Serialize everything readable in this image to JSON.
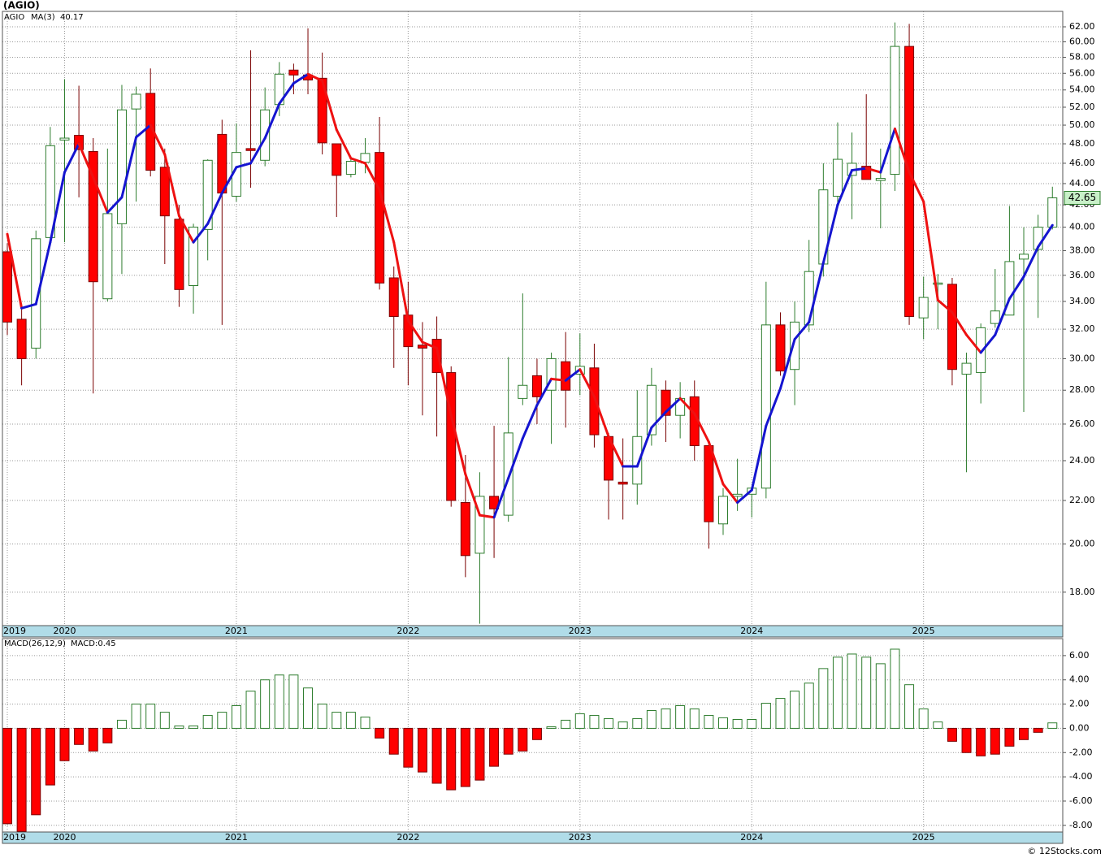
{
  "chart_data": [
    {
      "type": "candlestick",
      "title": "(AGIO)",
      "categories": [
        "2019",
        null,
        null,
        null,
        "2020",
        null,
        null,
        null,
        null,
        null,
        null,
        null,
        null,
        null,
        null,
        null,
        "2021",
        null,
        null,
        null,
        null,
        null,
        null,
        null,
        null,
        null,
        null,
        null,
        "2022",
        null,
        null,
        null,
        null,
        null,
        null,
        null,
        null,
        null,
        null,
        null,
        "2023",
        null,
        null,
        null,
        null,
        null,
        null,
        null,
        null,
        null,
        null,
        null,
        "2024",
        null,
        null,
        null,
        null,
        null,
        null,
        null,
        null,
        null,
        null,
        null,
        "2025",
        null,
        null,
        null,
        null,
        null,
        null,
        null,
        null,
        null
      ],
      "series": [
        {
          "name": "AGIO",
          "color": "#2e8b2e",
          "up_color": "#2e7d2e",
          "down_color": "#ff0000",
          "down_edge_color": "#7a0000",
          "open": [
            37.9,
            32.7,
            30.7,
            39.1,
            48.4,
            48.9,
            47.2,
            34.2,
            40.3,
            51.8,
            53.6,
            45.6,
            40.7,
            35.2,
            39.8,
            49.0,
            42.8,
            47.5,
            46.3,
            52.3,
            56.4,
            55.8,
            55.4,
            48.0,
            44.9,
            46.1,
            47.1,
            35.8,
            33.0,
            30.9,
            31.3,
            29.1,
            21.9,
            19.6,
            22.2,
            21.3,
            27.5,
            28.9,
            28.0,
            29.8,
            29.0,
            29.4,
            25.3,
            22.9,
            22.8,
            25.4,
            28.0,
            26.5,
            27.6,
            24.8,
            20.9,
            22.2,
            22.3,
            22.6,
            32.3,
            29.3,
            32.3,
            36.9,
            42.8,
            44.8,
            45.7,
            44.3,
            44.9,
            59.4,
            32.8,
            35.3,
            35.3,
            29.0,
            29.1,
            32.4,
            33.0,
            37.3,
            38.1,
            40.0
          ],
          "high": [
            38.6,
            33.8,
            39.7,
            49.8,
            55.3,
            54.5,
            48.6,
            47.5,
            54.6,
            54.4,
            56.6,
            47.5,
            42.0,
            40.3,
            46.4,
            50.6,
            50.2,
            58.9,
            54.3,
            57.4,
            57.2,
            61.8,
            58.6,
            48.0,
            46.4,
            48.6,
            50.9,
            36.7,
            35.5,
            32.5,
            32.9,
            29.5,
            24.3,
            23.4,
            25.9,
            30.1,
            34.6,
            30.0,
            30.4,
            31.8,
            31.7,
            31.0,
            25.5,
            25.2,
            28.0,
            29.4,
            28.6,
            28.5,
            28.6,
            25.1,
            22.6,
            24.1,
            22.6,
            35.5,
            33.2,
            34.0,
            38.9,
            46.0,
            50.3,
            49.2,
            53.5,
            47.5,
            62.6,
            62.4,
            35.9,
            36.1,
            35.8,
            30.4,
            32.4,
            36.5,
            41.9,
            40.0,
            41.1,
            43.7
          ],
          "low": [
            31.6,
            28.3,
            30.0,
            38.5,
            38.7,
            42.7,
            27.8,
            34.0,
            36.1,
            42.3,
            44.7,
            36.9,
            33.6,
            33.1,
            37.2,
            32.3,
            42.3,
            43.6,
            45.7,
            51.0,
            53.5,
            53.5,
            46.9,
            40.9,
            44.6,
            45.0,
            34.9,
            29.4,
            28.3,
            26.5,
            25.3,
            21.7,
            18.6,
            16.8,
            19.4,
            21.0,
            27.1,
            26.0,
            24.9,
            25.8,
            27.7,
            24.7,
            21.1,
            21.1,
            21.8,
            24.8,
            25.0,
            25.2,
            24.0,
            19.8,
            20.4,
            21.5,
            21.2,
            22.1,
            28.9,
            27.1,
            31.8,
            35.9,
            42.1,
            40.7,
            44.4,
            39.9,
            43.3,
            32.3,
            31.3,
            32.0,
            28.3,
            23.4,
            27.2,
            32.1,
            33.0,
            26.7,
            32.8,
            39.8
          ],
          "close": [
            32.5,
            30.0,
            39.0,
            47.8,
            48.6,
            47.4,
            35.5,
            41.2,
            51.7,
            53.5,
            45.3,
            41.0,
            34.9,
            40.0,
            46.3,
            43.1,
            47.1,
            47.3,
            51.7,
            55.9,
            55.8,
            55.2,
            48.1,
            44.8,
            46.2,
            47.0,
            35.4,
            32.9,
            30.8,
            30.7,
            29.1,
            22.0,
            19.5,
            22.2,
            21.6,
            25.5,
            28.3,
            27.6,
            30.0,
            28.0,
            29.5,
            25.4,
            23.0,
            22.8,
            25.3,
            28.3,
            26.5,
            27.5,
            24.8,
            21.0,
            22.2,
            22.3,
            22.6,
            32.3,
            29.2,
            32.5,
            36.3,
            43.4,
            46.4,
            46.0,
            44.4,
            44.5,
            59.4,
            32.9,
            34.3,
            35.4,
            29.3,
            29.7,
            32.1,
            33.3,
            37.1,
            37.7,
            40.0,
            42.65
          ]
        },
        {
          "name": "MA(3)",
          "color": "#1515d0",
          "rise_color": "#1515d0",
          "fall_color": "#ee1111",
          "values": [
            39.4,
            33.5,
            33.8,
            38.7,
            45.1,
            48.0,
            44.6,
            41.3,
            42.7,
            48.7,
            50.0,
            46.9,
            41.0,
            38.7,
            40.3,
            43.1,
            45.6,
            46.0,
            48.6,
            52.4,
            54.8,
            55.9,
            55.1,
            49.5,
            46.5,
            46.0,
            43.4,
            38.7,
            32.6,
            31.1,
            30.7,
            26.5,
            23.3,
            21.3,
            21.2,
            23.1,
            25.2,
            27.1,
            28.7,
            28.6,
            29.3,
            27.6,
            25.3,
            23.7,
            23.7,
            25.8,
            26.7,
            27.5,
            26.6,
            25.0,
            22.8,
            21.9,
            22.5,
            25.9,
            28.1,
            31.3,
            32.5,
            37.0,
            42.0,
            45.3,
            45.5,
            45.1,
            49.6,
            45.1,
            42.3,
            34.1,
            33.2,
            31.6,
            30.4,
            31.6,
            34.2,
            35.9,
            38.3,
            40.17
          ]
        }
      ],
      "log_scale": true,
      "grid": true,
      "last_box_color": "#c8f0c8",
      "ylim": [
        16.73,
        64.13
      ],
      "yticks": [
        {
          "value": 18,
          "label": "18.00"
        },
        {
          "value": 20,
          "label": "20.00"
        },
        {
          "value": 22,
          "label": "22.00"
        },
        {
          "value": 24,
          "label": "24.00"
        },
        {
          "value": 26,
          "label": "26.00"
        },
        {
          "value": 28,
          "label": "28.00"
        },
        {
          "value": 30,
          "label": "30.00"
        },
        {
          "value": 32,
          "label": "32.00"
        },
        {
          "value": 34,
          "label": "34.00"
        },
        {
          "value": 36,
          "label": "36.00"
        },
        {
          "value": 38,
          "label": "38.00"
        },
        {
          "value": 40,
          "label": "40.00"
        },
        {
          "value": 42,
          "label": "42.00"
        },
        {
          "value": 44,
          "label": "44.00"
        },
        {
          "value": 46,
          "label": "46.00"
        },
        {
          "value": 48,
          "label": "48.00"
        },
        {
          "value": 50,
          "label": "50.00"
        },
        {
          "value": 52,
          "label": "52.00"
        },
        {
          "value": 54,
          "label": "54.00"
        },
        {
          "value": 56,
          "label": "56.00"
        },
        {
          "value": 58,
          "label": "58.00"
        },
        {
          "value": 60,
          "label": "60.00"
        },
        {
          "value": 62,
          "label": "62.00"
        }
      ]
    },
    {
      "type": "bar",
      "title": "MACD(26,12,9)",
      "readout": "MACD:0.45",
      "readout_color": "#1515d0",
      "categories": [
        "2019",
        null,
        null,
        null,
        "2020",
        null,
        null,
        null,
        null,
        null,
        null,
        null,
        null,
        null,
        null,
        null,
        "2021",
        null,
        null,
        null,
        null,
        null,
        null,
        null,
        null,
        null,
        null,
        null,
        "2022",
        null,
        null,
        null,
        null,
        null,
        null,
        null,
        null,
        null,
        null,
        null,
        "2023",
        null,
        null,
        null,
        null,
        null,
        null,
        null,
        null,
        null,
        null,
        null,
        "2024",
        null,
        null,
        null,
        null,
        null,
        null,
        null,
        null,
        null,
        null,
        null,
        "2025",
        null,
        null,
        null,
        null,
        null,
        null,
        null,
        null,
        null
      ],
      "series": [
        {
          "name": "MACD",
          "up_color": "#2e7d2e",
          "down_color": "#ff0000",
          "down_edge_color": "#7a0000",
          "values": [
            -7.87,
            -8.5,
            -7.13,
            -4.67,
            -2.67,
            -1.33,
            -1.87,
            -1.2,
            0.67,
            2.0,
            2.0,
            1.33,
            0.2,
            0.2,
            1.07,
            1.33,
            1.87,
            3.07,
            4.0,
            4.4,
            4.4,
            3.33,
            2.0,
            1.33,
            1.33,
            0.93,
            -0.8,
            -2.13,
            -3.2,
            -3.6,
            -4.53,
            -5.07,
            -4.8,
            -4.27,
            -3.13,
            -2.13,
            -1.87,
            -0.93,
            0.13,
            0.67,
            1.2,
            1.07,
            0.8,
            0.53,
            0.8,
            1.47,
            1.6,
            1.87,
            1.6,
            1.07,
            0.87,
            0.73,
            0.73,
            2.07,
            2.47,
            3.07,
            3.73,
            4.93,
            5.87,
            6.13,
            5.87,
            5.33,
            6.53,
            3.6,
            1.6,
            0.53,
            -1.07,
            -2.0,
            -2.27,
            -2.13,
            -1.47,
            -0.93,
            -0.33,
            0.45
          ]
        }
      ],
      "grid": true,
      "ylim": [
        -8.55,
        7.4
      ],
      "yticks": [
        {
          "value": -8,
          "label": "-8.00"
        },
        {
          "value": -6,
          "label": "-6.00"
        },
        {
          "value": -4,
          "label": "-4.00"
        },
        {
          "value": -2,
          "label": "-2.00"
        },
        {
          "value": 0,
          "label": "0.00"
        },
        {
          "value": 2,
          "label": "2.00"
        },
        {
          "value": 4,
          "label": "4.00"
        },
        {
          "value": 6,
          "label": "6.00"
        }
      ]
    }
  ],
  "footer": "© 12Stocks.com"
}
